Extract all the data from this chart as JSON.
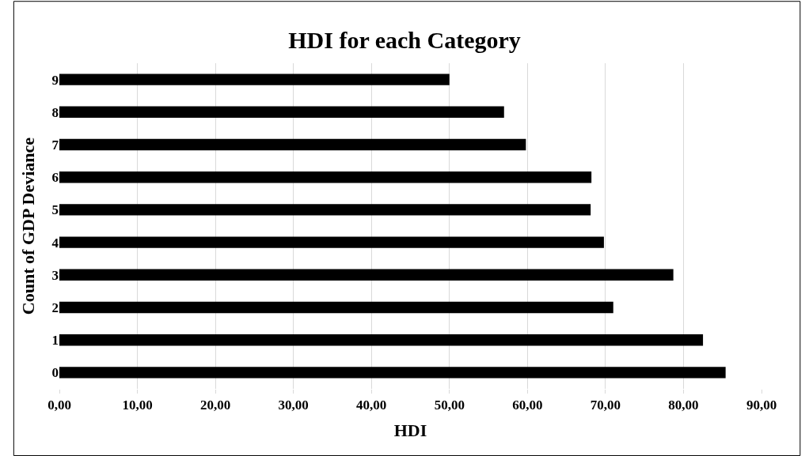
{
  "chart_data": {
    "type": "bar",
    "orientation": "horizontal",
    "title": "HDI for each Category",
    "xlabel": "HDI",
    "ylabel": "Count of GDP Deviance",
    "categories": [
      "9",
      "8",
      "7",
      "6",
      "5",
      "4",
      "3",
      "2",
      "1",
      "0"
    ],
    "values": [
      50.0,
      57.0,
      59.8,
      68.2,
      68.1,
      69.8,
      78.7,
      71.0,
      82.5,
      85.4
    ],
    "color": "#000000",
    "xlim": [
      0,
      90
    ],
    "xticks": [
      {
        "value": 0,
        "label": "0,00"
      },
      {
        "value": 10,
        "label": "10,00"
      },
      {
        "value": 20,
        "label": "20,00"
      },
      {
        "value": 30,
        "label": "30,00"
      },
      {
        "value": 40,
        "label": "40,00"
      },
      {
        "value": 50,
        "label": "50,00"
      },
      {
        "value": 60,
        "label": "60,00"
      },
      {
        "value": 70,
        "label": "70,00"
      },
      {
        "value": 80,
        "label": "80,00"
      },
      {
        "value": 90,
        "label": "90,00"
      }
    ],
    "grid": "x",
    "legend": false
  }
}
